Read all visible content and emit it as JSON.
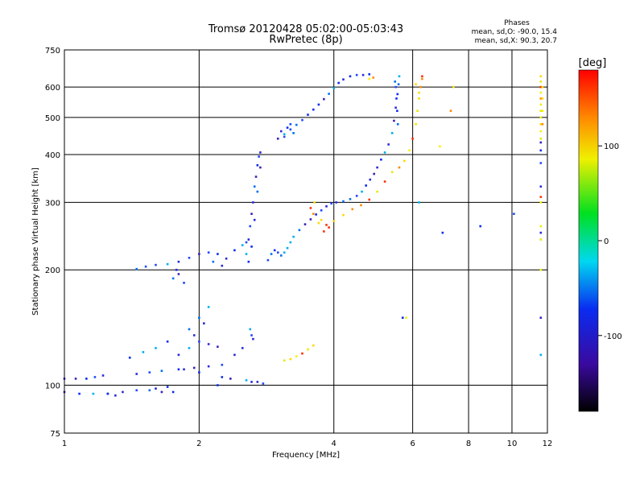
{
  "chart_data": {
    "type": "scatter",
    "title": "Tromsø 20120428 05:02:00-05:03:43",
    "subtitle": "RwPretec (8p)",
    "xlabel": "Frequency [MHz]",
    "ylabel": "Stationary phase Virtual Height [km]",
    "x_scale": "log",
    "y_scale": "log",
    "xlim": [
      1,
      12
    ],
    "ylim": [
      75,
      750
    ],
    "x_ticks": [
      1,
      2,
      4,
      6,
      8,
      10,
      12
    ],
    "y_ticks": [
      75,
      100,
      200,
      300,
      400,
      500,
      600,
      750
    ],
    "grid": true,
    "phases_box": {
      "heading": "Phases",
      "line1": "mean, sd,O: -90.0, 15.4",
      "line2": "mean, sd,X:  90.3, 20.7"
    },
    "colorbar": {
      "label": "[deg]",
      "range": [
        -180,
        180
      ],
      "ticks": [
        100,
        0,
        -100
      ],
      "tick_labels": [
        "100",
        "0",
        "-100"
      ]
    },
    "series": [
      {
        "mode": "O",
        "points": [
          [
            1.0,
            104
          ],
          [
            1.06,
            104
          ],
          [
            1.12,
            104
          ],
          [
            1.17,
            105
          ],
          [
            1.22,
            106
          ],
          [
            1.0,
            96
          ],
          [
            1.08,
            95
          ],
          [
            1.16,
            95
          ],
          [
            1.25,
            95
          ],
          [
            1.35,
            96
          ],
          [
            1.45,
            97
          ],
          [
            1.55,
            97
          ],
          [
            1.65,
            96
          ],
          [
            1.75,
            96
          ],
          [
            1.45,
            107
          ],
          [
            1.55,
            108
          ],
          [
            1.65,
            109
          ],
          [
            1.8,
            110
          ],
          [
            1.95,
            111
          ],
          [
            2.1,
            112
          ],
          [
            2.25,
            113
          ],
          [
            1.4,
            118
          ],
          [
            1.5,
            122
          ],
          [
            1.6,
            125
          ],
          [
            1.7,
            130
          ],
          [
            1.8,
            120
          ],
          [
            1.9,
            125
          ],
          [
            2.0,
            130
          ],
          [
            2.1,
            128
          ],
          [
            2.2,
            126
          ],
          [
            1.45,
            201
          ],
          [
            1.52,
            204
          ],
          [
            1.6,
            206
          ],
          [
            1.7,
            207
          ],
          [
            1.8,
            210
          ],
          [
            1.9,
            215
          ],
          [
            2.0,
            220
          ],
          [
            2.1,
            222
          ],
          [
            2.2,
            220
          ],
          [
            2.15,
            210
          ],
          [
            2.25,
            205
          ],
          [
            2.3,
            214
          ],
          [
            2.4,
            225
          ],
          [
            2.5,
            232
          ],
          [
            2.55,
            236
          ],
          [
            2.55,
            220
          ],
          [
            2.58,
            240
          ],
          [
            2.6,
            260
          ],
          [
            2.62,
            280
          ],
          [
            2.64,
            300
          ],
          [
            2.66,
            330
          ],
          [
            2.68,
            350
          ],
          [
            2.7,
            375
          ],
          [
            2.72,
            395
          ],
          [
            2.74,
            405
          ],
          [
            2.58,
            210
          ],
          [
            2.62,
            230
          ],
          [
            2.66,
            270
          ],
          [
            2.7,
            320
          ],
          [
            2.74,
            370
          ],
          [
            2.6,
            140
          ],
          [
            2.62,
            135
          ],
          [
            2.64,
            132
          ],
          [
            2.5,
            125
          ],
          [
            2.4,
            120
          ],
          [
            2.55,
            103
          ],
          [
            2.62,
            102
          ],
          [
            2.7,
            102
          ],
          [
            2.78,
            101
          ],
          [
            2.85,
            212
          ],
          [
            2.9,
            220
          ],
          [
            2.95,
            225
          ],
          [
            3.0,
            222
          ],
          [
            3.05,
            218
          ],
          [
            3.1,
            222
          ],
          [
            3.15,
            228
          ],
          [
            3.2,
            236
          ],
          [
            3.25,
            244
          ],
          [
            3.35,
            254
          ],
          [
            3.45,
            263
          ],
          [
            3.55,
            271
          ],
          [
            3.65,
            279
          ],
          [
            3.75,
            286
          ],
          [
            3.85,
            293
          ],
          [
            3.95,
            298
          ],
          [
            4.05,
            300
          ],
          [
            4.2,
            302
          ],
          [
            4.35,
            306
          ],
          [
            4.5,
            312
          ],
          [
            4.62,
            320
          ],
          [
            4.72,
            332
          ],
          [
            4.82,
            344
          ],
          [
            4.92,
            356
          ],
          [
            5.0,
            370
          ],
          [
            5.1,
            388
          ],
          [
            5.2,
            405
          ],
          [
            5.3,
            425
          ],
          [
            5.4,
            455
          ],
          [
            5.45,
            490
          ],
          [
            5.5,
            530
          ],
          [
            5.55,
            575
          ],
          [
            5.58,
            610
          ],
          [
            5.6,
            640
          ],
          [
            5.5,
            600
          ],
          [
            5.52,
            560
          ],
          [
            5.54,
            520
          ],
          [
            5.56,
            480
          ],
          [
            5.48,
            620
          ],
          [
            3.0,
            440
          ],
          [
            3.1,
            452
          ],
          [
            3.2,
            465
          ],
          [
            3.3,
            478
          ],
          [
            3.4,
            492
          ],
          [
            3.5,
            508
          ],
          [
            3.6,
            524
          ],
          [
            3.7,
            540
          ],
          [
            3.8,
            558
          ],
          [
            3.9,
            576
          ],
          [
            4.0,
            596
          ],
          [
            4.1,
            615
          ],
          [
            4.2,
            628
          ],
          [
            4.35,
            640
          ],
          [
            4.5,
            645
          ],
          [
            4.65,
            645
          ],
          [
            4.8,
            648
          ],
          [
            3.05,
            460
          ],
          [
            3.2,
            480
          ],
          [
            3.1,
            445
          ],
          [
            3.25,
            455
          ],
          [
            3.15,
            470
          ],
          [
            2.2,
            100
          ],
          [
            2.25,
            105
          ],
          [
            2.35,
            104
          ],
          [
            2.0,
            108
          ],
          [
            1.85,
            110
          ],
          [
            1.25,
            95
          ],
          [
            1.3,
            94
          ],
          [
            1.6,
            98
          ],
          [
            1.7,
            99
          ],
          [
            1.9,
            140
          ],
          [
            1.95,
            135
          ],
          [
            2.0,
            150
          ],
          [
            2.05,
            145
          ],
          [
            2.1,
            160
          ],
          [
            1.75,
            190
          ],
          [
            1.8,
            195
          ],
          [
            1.85,
            185
          ],
          [
            1.78,
            200
          ],
          [
            5.7,
            150
          ],
          [
            6.2,
            300
          ],
          [
            7.0,
            250
          ],
          [
            8.5,
            260
          ],
          [
            10.1,
            280
          ],
          [
            11.6,
            380
          ],
          [
            11.6,
            410
          ],
          [
            11.6,
            430
          ],
          [
            11.6,
            330
          ],
          [
            11.6,
            250
          ],
          [
            11.6,
            150
          ],
          [
            11.6,
            120
          ]
        ]
      },
      {
        "mode": "X",
        "points": [
          [
            3.1,
            116
          ],
          [
            3.2,
            117
          ],
          [
            3.3,
            119
          ],
          [
            3.4,
            121
          ],
          [
            3.5,
            124
          ],
          [
            3.6,
            127
          ],
          [
            3.55,
            290
          ],
          [
            3.6,
            280
          ],
          [
            3.7,
            265
          ],
          [
            3.8,
            252
          ],
          [
            3.9,
            258
          ],
          [
            4.0,
            268
          ],
          [
            4.2,
            278
          ],
          [
            4.4,
            288
          ],
          [
            4.6,
            295
          ],
          [
            4.8,
            305
          ],
          [
            5.0,
            320
          ],
          [
            5.2,
            340
          ],
          [
            5.4,
            360
          ],
          [
            5.6,
            370
          ],
          [
            5.75,
            385
          ],
          [
            5.9,
            410
          ],
          [
            6.0,
            440
          ],
          [
            6.1,
            480
          ],
          [
            6.15,
            520
          ],
          [
            6.2,
            560
          ],
          [
            6.25,
            600
          ],
          [
            6.3,
            630
          ],
          [
            3.62,
            300
          ],
          [
            3.75,
            270
          ],
          [
            3.85,
            262
          ],
          [
            4.9,
            635
          ],
          [
            4.8,
            630
          ],
          [
            6.1,
            610
          ],
          [
            6.2,
            580
          ],
          [
            6.3,
            640
          ],
          [
            7.4,
            600
          ],
          [
            6.9,
            420
          ],
          [
            7.3,
            520
          ],
          [
            5.8,
            150
          ],
          [
            11.6,
            200
          ],
          [
            11.6,
            240
          ],
          [
            11.6,
            260
          ],
          [
            11.6,
            300
          ],
          [
            11.6,
            310
          ],
          [
            11.6,
            440
          ],
          [
            11.6,
            460
          ],
          [
            11.6,
            480
          ],
          [
            11.6,
            500
          ],
          [
            11.6,
            520
          ],
          [
            11.6,
            540
          ],
          [
            11.6,
            560
          ],
          [
            11.6,
            580
          ],
          [
            11.6,
            600
          ],
          [
            11.6,
            620
          ],
          [
            11.6,
            640
          ],
          [
            11.7,
            480
          ],
          [
            11.7,
            520
          ],
          [
            11.7,
            560
          ],
          [
            11.7,
            600
          ]
        ]
      }
    ]
  }
}
